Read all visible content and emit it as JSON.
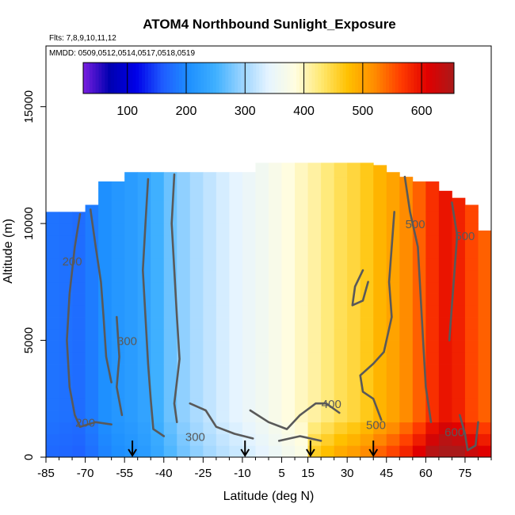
{
  "chart_data": {
    "type": "heatmap",
    "title": "ATOM4 Northbound Sunlight_Exposure",
    "flights_note": "Flts: 7,8,9,10,11,12",
    "dates_note": "MMDD: 0509,0512,0514,0517,0518,0519",
    "xlabel": "Latitude (deg N)",
    "ylabel": "Altitude (m)",
    "xlim": [
      -85,
      85
    ],
    "ylim": [
      0,
      17600
    ],
    "x_ticks": [
      -85,
      -70,
      -55,
      -40,
      -25,
      -10,
      5,
      15,
      30,
      45,
      60,
      75
    ],
    "x_minor_ticks": [
      -80,
      -75,
      -65,
      -60,
      -50,
      -45,
      -35,
      -30,
      -20,
      -15,
      -5,
      0,
      10,
      20,
      25,
      35,
      40,
      50,
      55,
      65,
      70,
      80,
      85
    ],
    "y_ticks": [
      0,
      5000,
      10000,
      15000
    ],
    "y_tick_labels": [
      "0",
      "5000",
      "10000",
      "15000"
    ],
    "colorbar": {
      "min": 25,
      "max": 655,
      "ticks": [
        100,
        200,
        300,
        400,
        500,
        600
      ],
      "colors": [
        "#7a1fe0",
        "#0000b0",
        "#0000e8",
        "#1f5cff",
        "#1e90ff",
        "#3fb0ff",
        "#9ad4ff",
        "#e6f4ff",
        "#fffde0",
        "#ffe870",
        "#ffc000",
        "#ff8c00",
        "#ff3c00",
        "#e00000",
        "#aa1a1a"
      ]
    },
    "column_profiles": [
      {
        "lat": -85,
        "v": 180
      },
      {
        "lat": -80,
        "v": 178
      },
      {
        "lat": -75,
        "v": 175
      },
      {
        "lat": -70,
        "v": 188
      },
      {
        "lat": -65,
        "v": 205
      },
      {
        "lat": -60,
        "v": 215
      },
      {
        "lat": -55,
        "v": 222
      },
      {
        "lat": -50,
        "v": 232
      },
      {
        "lat": -45,
        "v": 250
      },
      {
        "lat": -40,
        "v": 272
      },
      {
        "lat": -35,
        "v": 290
      },
      {
        "lat": -30,
        "v": 305
      },
      {
        "lat": -25,
        "v": 318
      },
      {
        "lat": -20,
        "v": 330
      },
      {
        "lat": -15,
        "v": 340
      },
      {
        "lat": -10,
        "v": 350
      },
      {
        "lat": -5,
        "v": 360
      },
      {
        "lat": 0,
        "v": 372
      },
      {
        "lat": 5,
        "v": 385
      },
      {
        "lat": 10,
        "v": 398
      },
      {
        "lat": 15,
        "v": 410
      },
      {
        "lat": 20,
        "v": 425
      },
      {
        "lat": 25,
        "v": 440
      },
      {
        "lat": 30,
        "v": 450
      },
      {
        "lat": 35,
        "v": 465
      },
      {
        "lat": 40,
        "v": 485
      },
      {
        "lat": 45,
        "v": 500
      },
      {
        "lat": 50,
        "v": 520
      },
      {
        "lat": 55,
        "v": 545
      },
      {
        "lat": 60,
        "v": 575
      },
      {
        "lat": 65,
        "v": 595
      },
      {
        "lat": 70,
        "v": 585
      },
      {
        "lat": 75,
        "v": 560
      },
      {
        "lat": 80,
        "v": 545
      }
    ],
    "data_extent": [
      {
        "lat": -85,
        "top": 10500
      },
      {
        "lat": -80,
        "top": 10500
      },
      {
        "lat": -75,
        "top": 10500
      },
      {
        "lat": -70,
        "top": 10800
      },
      {
        "lat": -65,
        "top": 11800
      },
      {
        "lat": -60,
        "top": 11800
      },
      {
        "lat": -55,
        "top": 12200
      },
      {
        "lat": -50,
        "top": 12200
      },
      {
        "lat": -45,
        "top": 12200
      },
      {
        "lat": -40,
        "top": 12200
      },
      {
        "lat": -35,
        "top": 12200
      },
      {
        "lat": -30,
        "top": 12200
      },
      {
        "lat": -25,
        "top": 12200
      },
      {
        "lat": -20,
        "top": 12200
      },
      {
        "lat": -15,
        "top": 12200
      },
      {
        "lat": -10,
        "top": 12200
      },
      {
        "lat": -5,
        "top": 12600
      },
      {
        "lat": 0,
        "top": 12600
      },
      {
        "lat": 5,
        "top": 12600
      },
      {
        "lat": 10,
        "top": 12600
      },
      {
        "lat": 15,
        "top": 12600
      },
      {
        "lat": 20,
        "top": 12600
      },
      {
        "lat": 25,
        "top": 12600
      },
      {
        "lat": 30,
        "top": 12600
      },
      {
        "lat": 35,
        "top": 12600
      },
      {
        "lat": 40,
        "top": 12500
      },
      {
        "lat": 45,
        "top": 12200
      },
      {
        "lat": 50,
        "top": 12000
      },
      {
        "lat": 55,
        "top": 11800
      },
      {
        "lat": 60,
        "top": 11800
      },
      {
        "lat": 65,
        "top": 11400
      },
      {
        "lat": 70,
        "top": 11100
      },
      {
        "lat": 75,
        "top": 10800
      },
      {
        "lat": 80,
        "top": 9700
      }
    ],
    "contour_labels": [
      {
        "text": "200",
        "lat": -75,
        "alt": 8200
      },
      {
        "text": "200",
        "lat": -70,
        "alt": 1300
      },
      {
        "text": "300",
        "lat": -54,
        "alt": 4800
      },
      {
        "text": "300",
        "lat": -28,
        "alt": 700
      },
      {
        "text": "400",
        "lat": 24,
        "alt": 2100
      },
      {
        "text": "500",
        "lat": 41,
        "alt": 1200
      },
      {
        "text": "500",
        "lat": 56,
        "alt": 9800
      },
      {
        "text": "500",
        "lat": 75,
        "alt": 9300
      },
      {
        "text": "600",
        "lat": 71,
        "alt": 900
      }
    ],
    "contour_lines": [
      {
        "value": 200,
        "points": [
          [
            -72,
            10400
          ],
          [
            -74,
            9000
          ],
          [
            -76,
            7000
          ],
          [
            -77,
            5000
          ],
          [
            -76,
            3000
          ],
          [
            -74,
            1800
          ],
          [
            -72,
            1300
          ],
          [
            -66,
            1500
          ],
          [
            -60,
            1400
          ]
        ]
      },
      {
        "value": 200,
        "points": [
          [
            -68,
            10600
          ],
          [
            -66,
            9000
          ],
          [
            -64,
            7500
          ],
          [
            -63,
            6000
          ],
          [
            -62,
            4300
          ],
          [
            -60,
            3200
          ]
        ]
      },
      {
        "value": 300,
        "points": [
          [
            -46,
            11900
          ],
          [
            -47,
            10000
          ],
          [
            -48,
            8000
          ],
          [
            -47,
            6000
          ],
          [
            -46,
            4000
          ],
          [
            -45,
            2500
          ],
          [
            -44,
            1200
          ],
          [
            -40,
            900
          ]
        ]
      },
      {
        "value": 300,
        "points": [
          [
            -36,
            12100
          ],
          [
            -37,
            10000
          ],
          [
            -36,
            8000
          ],
          [
            -35,
            6000
          ],
          [
            -34,
            4200
          ],
          [
            -36,
            2300
          ],
          [
            -35,
            1500
          ]
        ]
      },
      {
        "value": 300,
        "points": [
          [
            -58,
            6000
          ],
          [
            -57,
            4300
          ],
          [
            -58,
            3000
          ],
          [
            -56,
            1800
          ]
        ]
      },
      {
        "value": 300,
        "points": [
          [
            -30,
            2300
          ],
          [
            -24,
            2000
          ],
          [
            -20,
            1300
          ],
          [
            -13,
            1000
          ],
          [
            -6,
            800
          ]
        ]
      },
      {
        "value": 400,
        "points": [
          [
            -7,
            2000
          ],
          [
            0,
            1500
          ],
          [
            7,
            1200
          ],
          [
            12,
            1800
          ],
          [
            18,
            2300
          ],
          [
            22,
            2300
          ],
          [
            27,
            1900
          ]
        ]
      },
      {
        "value": 400,
        "points": [
          [
            4,
            700
          ],
          [
            12,
            900
          ],
          [
            20,
            700
          ]
        ]
      },
      {
        "value": 500,
        "points": [
          [
            43,
            1600
          ],
          [
            40,
            2500
          ],
          [
            36,
            2800
          ],
          [
            35,
            3500
          ],
          [
            40,
            4000
          ],
          [
            44,
            4500
          ],
          [
            47,
            6000
          ],
          [
            46,
            7500
          ],
          [
            47,
            9000
          ],
          [
            48,
            10500
          ]
        ]
      },
      {
        "value": 500,
        "points": [
          [
            52,
            12000
          ],
          [
            54,
            10500
          ],
          [
            57,
            9000
          ],
          [
            58,
            7000
          ],
          [
            59,
            5000
          ],
          [
            60,
            3000
          ],
          [
            62,
            1500
          ]
        ]
      },
      {
        "value": 500,
        "points": [
          [
            36,
            8000
          ],
          [
            33,
            7300
          ],
          [
            32,
            6500
          ],
          [
            36,
            6700
          ],
          [
            38,
            7500
          ]
        ]
      },
      {
        "value": 500,
        "points": [
          [
            70,
            10900
          ],
          [
            72,
            9500
          ],
          [
            71,
            8000
          ],
          [
            70,
            6500
          ],
          [
            69,
            5000
          ]
        ]
      },
      {
        "value": 600,
        "points": [
          [
            73,
            1800
          ],
          [
            75,
            1000
          ],
          [
            76,
            300
          ],
          [
            79,
            500
          ],
          [
            80,
            1500
          ]
        ]
      }
    ],
    "flight_arrows_lat": [
      -52,
      -9,
      16,
      40
    ],
    "grid": false,
    "colorbar_position": "top"
  }
}
